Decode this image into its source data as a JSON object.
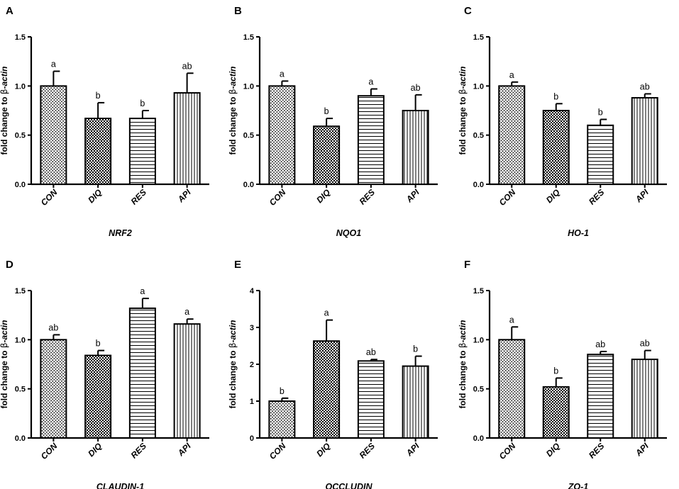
{
  "figure": {
    "ylabel_prefix": "fold change to ",
    "ylabel_beta": "β",
    "ylabel_actin": "-actin"
  },
  "chart_data": [
    {
      "panel": "A",
      "type": "bar",
      "gene": "NRF2",
      "categories": [
        "CON",
        "DIQ",
        "RES",
        "API"
      ],
      "values": [
        1.0,
        0.67,
        0.67,
        0.93
      ],
      "errors": [
        0.15,
        0.16,
        0.08,
        0.2
      ],
      "significance": [
        "a",
        "b",
        "b",
        "ab"
      ],
      "ylim": [
        0,
        1.5
      ],
      "ticks": [
        "0.0",
        "0.5",
        "1.0",
        "1.5"
      ]
    },
    {
      "panel": "B",
      "type": "bar",
      "gene": "NQO1",
      "categories": [
        "CON",
        "DIQ",
        "RES",
        "API"
      ],
      "values": [
        1.0,
        0.59,
        0.9,
        0.75
      ],
      "errors": [
        0.05,
        0.08,
        0.07,
        0.16
      ],
      "significance": [
        "a",
        "b",
        "a",
        "ab"
      ],
      "ylim": [
        0,
        1.5
      ],
      "ticks": [
        "0.0",
        "0.5",
        "1.0",
        "1.5"
      ]
    },
    {
      "panel": "C",
      "type": "bar",
      "gene": "HO-1",
      "categories": [
        "CON",
        "DIQ",
        "RES",
        "API"
      ],
      "values": [
        1.0,
        0.75,
        0.6,
        0.88
      ],
      "errors": [
        0.04,
        0.07,
        0.06,
        0.04
      ],
      "significance": [
        "a",
        "b",
        "b",
        "ab"
      ],
      "ylim": [
        0,
        1.5
      ],
      "ticks": [
        "0.0",
        "0.5",
        "1.0",
        "1.5"
      ]
    },
    {
      "panel": "D",
      "type": "bar",
      "gene": "CLAUDIN-1",
      "categories": [
        "CON",
        "DIQ",
        "RES",
        "API"
      ],
      "values": [
        1.0,
        0.84,
        1.32,
        1.16
      ],
      "errors": [
        0.05,
        0.05,
        0.1,
        0.05
      ],
      "significance": [
        "ab",
        "b",
        "a",
        "a"
      ],
      "ylim": [
        0,
        1.5
      ],
      "ticks": [
        "0.0",
        "0.5",
        "1.0",
        "1.5"
      ]
    },
    {
      "panel": "E",
      "type": "bar",
      "gene": "OCCLUDIN",
      "categories": [
        "CON",
        "DIQ",
        "RES",
        "API"
      ],
      "values": [
        1.0,
        2.63,
        2.09,
        1.95
      ],
      "errors": [
        0.08,
        0.57,
        0.04,
        0.27
      ],
      "significance": [
        "b",
        "a",
        "ab",
        "b"
      ],
      "ylim": [
        0,
        4
      ],
      "ticks": [
        "0",
        "1",
        "2",
        "3",
        "4"
      ]
    },
    {
      "panel": "F",
      "type": "bar",
      "gene": "ZO-1",
      "categories": [
        "CON",
        "DIQ",
        "RES",
        "API"
      ],
      "values": [
        1.0,
        0.52,
        0.85,
        0.8
      ],
      "errors": [
        0.13,
        0.09,
        0.03,
        0.09
      ],
      "significance": [
        "a",
        "b",
        "ab",
        "ab"
      ],
      "ylim": [
        0,
        1.5
      ],
      "ticks": [
        "0.0",
        "0.5",
        "1.0",
        "1.5"
      ]
    }
  ]
}
